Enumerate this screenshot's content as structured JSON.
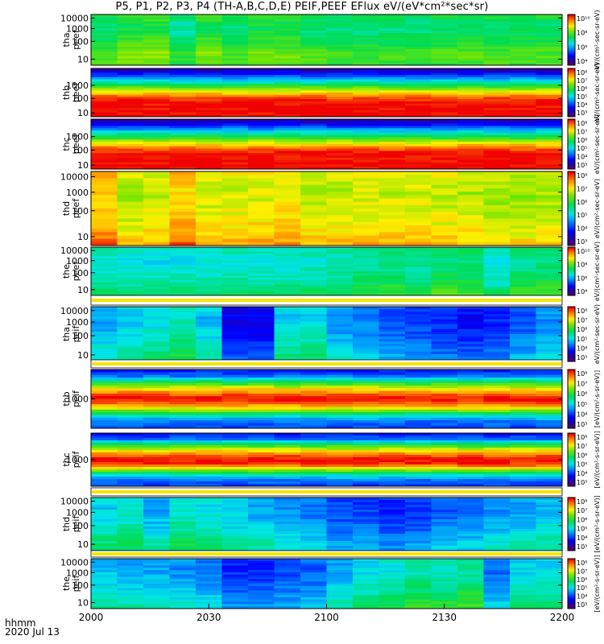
{
  "title": "P5, P1, P2, P3, P4 (TH-A,B,C,D,E) PEIF,PEEF EFlux eV/(eV*cm²*sec*sr)",
  "footer": {
    "time_label": "hhmm",
    "date_label": "2020 Jul 13"
  },
  "x_ticks": [
    "2000",
    "2030",
    "2100",
    "2130",
    "2200"
  ],
  "panels": [
    {
      "name": "tha peef",
      "line1": "tha",
      "line2": "peef",
      "yticks": [
        "10000",
        "1000",
        "100",
        "10"
      ],
      "cb_ticks": [
        "10¹⁰",
        "10⁸",
        "10⁶",
        "10⁴"
      ],
      "cb_label": "eV/(cm²-sec-sr-eV)"
    },
    {
      "name": "thb peef",
      "line1": "thb",
      "line2": "peef",
      "yticks": [
        "1000",
        "100",
        "10"
      ],
      "cb_ticks": [
        "10⁸",
        "10⁷",
        "10⁶",
        "10⁵",
        "10⁴",
        "10³"
      ],
      "cb_label": "eV/(cm²-sec-sr-eV)"
    },
    {
      "name": "thc peef",
      "line1": "thc",
      "line2": "peef",
      "yticks": [
        "1000",
        "100",
        "10"
      ],
      "cb_ticks": [
        "10⁸",
        "10⁷",
        "10⁶",
        "10⁵",
        "10⁴",
        "10³"
      ],
      "cb_label": "eV/(cm²-sec-sr-eV)"
    },
    {
      "name": "thd peef",
      "line1": "thd",
      "line2": "peef",
      "yticks": [
        "10000",
        "1000",
        "100",
        "10"
      ],
      "cb_ticks": [
        "10⁸",
        "10⁷",
        "10⁶",
        "10⁵",
        "10⁴",
        "10³"
      ],
      "cb_label": "eV/(cm²-sec-sr-eV)"
    },
    {
      "name": "the peef",
      "line1": "the",
      "line2": "peef",
      "yticks": [
        "10000",
        "1000",
        "100",
        "10"
      ],
      "cb_ticks": [
        "10¹⁰",
        "10⁸",
        "10⁶",
        "10⁴"
      ],
      "cb_label": "eV/(cm²-sec-sr-eV)"
    },
    {
      "name": "tha peif",
      "line1": "tha",
      "line2": "peif",
      "yticks": [
        "10000",
        "1000",
        "100",
        "10"
      ],
      "cb_ticks": [
        "10⁸",
        "10⁷",
        "10⁶",
        "10⁵",
        "10⁴",
        "10³"
      ],
      "cb_label": "eV/(cm²-sec-sr-eV)"
    },
    {
      "name": "thb peif",
      "line1": "thb",
      "line2": "peif",
      "yticks": [
        "1000"
      ],
      "cb_ticks": [
        "10⁸",
        "10⁷",
        "10⁶",
        "10⁵",
        "10⁴",
        "10³"
      ],
      "cb_label": "[eV/(cm²-s-sr-eV)]"
    },
    {
      "name": "thc peif",
      "line1": "thc",
      "line2": "peif",
      "yticks": [
        "1000"
      ],
      "cb_ticks": [
        "10⁸",
        "10⁷",
        "10⁶",
        "10⁵",
        "10⁴",
        "10³"
      ],
      "cb_label": "[eV/(cm²-s-sr-eV)]"
    },
    {
      "name": "thd peif",
      "line1": "thd",
      "line2": "peif",
      "yticks": [
        "10000",
        "1000",
        "100",
        "10"
      ],
      "cb_ticks": [
        "10⁸",
        "10⁷",
        "10⁶",
        "10⁵",
        "10⁴",
        "10³"
      ],
      "cb_label": "[eV/(cm²-s-sr-eV)]"
    },
    {
      "name": "the peif",
      "line1": "the",
      "line2": "peif",
      "yticks": [
        "10000",
        "1000",
        "100",
        "10"
      ],
      "cb_ticks": [
        "10⁸",
        "10⁷",
        "10⁶",
        "10⁵",
        "10⁴",
        "10³"
      ],
      "cb_label": "[eV/(cm²-s-sr-eV)]"
    }
  ],
  "chart_data": {
    "type": "heatmap",
    "title": "P5, P1, P2, P3, P4 (TH-A,B,C,D,E) PEIF,PEEF EFlux eV/(eV*cm²*sec*sr)",
    "xlabel": "hhmm",
    "x_range": [
      "2000",
      "2200"
    ],
    "date": "2020 Jul 13",
    "y_scale": "log",
    "colormap": "rainbow (purple-blue-cyan-green-yellow-red)",
    "colorbar_scale": "log",
    "panels": [
      "tha peef",
      "thb peef",
      "thc peef",
      "thd peef",
      "the peef",
      "tha peif",
      "thb peif",
      "thc peif",
      "thd peif",
      "the peif"
    ],
    "profiles_rows_top_to_bottom": [
      [
        0.6,
        0.55,
        0.5,
        0.5,
        0.55,
        0.6,
        0.65,
        0.7,
        0.75,
        0.75,
        0.7
      ],
      [
        0.1,
        0.2,
        0.35,
        0.5,
        0.65,
        0.8,
        0.92,
        1.0,
        1.0,
        1.0,
        1.0
      ],
      [
        0.1,
        0.2,
        0.35,
        0.5,
        0.65,
        0.8,
        0.92,
        1.0,
        1.0,
        1.0,
        1.0
      ],
      [
        0.8,
        0.75,
        0.72,
        0.72,
        0.74,
        0.76,
        0.78,
        0.8,
        0.84,
        0.9,
        0.95
      ],
      [
        0.55,
        0.5,
        0.45,
        0.45,
        0.48,
        0.5,
        0.52,
        0.55,
        0.6,
        0.65,
        0.7
      ],
      [
        0.35,
        0.3,
        0.3,
        0.32,
        0.35,
        0.38,
        0.42,
        0.45,
        0.5,
        0.55,
        0.6
      ],
      [
        0.2,
        0.3,
        0.55,
        0.75,
        0.9,
        1.0,
        0.9,
        0.7,
        0.45,
        0.3,
        0.25
      ],
      [
        0.2,
        0.3,
        0.55,
        0.75,
        0.9,
        1.0,
        0.95,
        0.7,
        0.45,
        0.3,
        0.25
      ],
      [
        0.35,
        0.32,
        0.32,
        0.35,
        0.38,
        0.42,
        0.45,
        0.5,
        0.55,
        0.6,
        0.62
      ],
      [
        0.35,
        0.32,
        0.32,
        0.35,
        0.38,
        0.42,
        0.45,
        0.5,
        0.55,
        0.6,
        0.62
      ]
    ],
    "time_modulation_18_bins": [
      [
        0.62,
        0.7,
        0.72,
        0.55,
        0.7,
        0.6,
        0.7,
        0.68,
        0.62,
        0.6,
        0.58,
        0.6,
        0.6,
        0.62,
        0.62,
        0.62,
        0.63,
        0.63
      ],
      [
        0,
        0,
        0,
        0,
        0,
        0,
        0,
        0,
        0,
        0,
        0,
        0,
        0,
        0,
        0,
        0,
        0,
        0
      ],
      [
        0,
        0,
        0,
        0,
        0,
        0,
        0,
        0,
        0,
        0,
        0,
        0,
        0,
        0,
        0,
        0,
        0,
        0
      ],
      [
        0.92,
        0.78,
        0.8,
        0.92,
        0.82,
        0.82,
        0.84,
        0.86,
        0.78,
        0.8,
        0.82,
        0.82,
        0.82,
        0.8,
        0.78,
        0.76,
        0.74,
        0.78
      ],
      [
        0.5,
        0.48,
        0.48,
        0.48,
        0.5,
        0.52,
        0.5,
        0.5,
        0.52,
        0.55,
        0.6,
        0.62,
        0.58,
        0.66,
        0.66,
        0.48,
        0.62,
        0.64
      ],
      [
        0.45,
        0.55,
        0.6,
        0.68,
        0.52,
        0.1,
        0.1,
        0.55,
        0.6,
        0.42,
        0.38,
        0.3,
        0.25,
        0.2,
        0.15,
        0.2,
        0.3,
        0.42
      ],
      [
        0,
        0,
        0,
        0,
        0,
        0,
        0,
        0,
        0,
        0,
        0,
        0,
        0,
        0,
        0,
        0,
        0,
        0
      ],
      [
        0,
        0,
        0,
        0,
        0,
        0,
        0,
        0,
        0,
        0,
        0,
        0,
        0,
        0,
        0,
        0,
        0,
        0
      ],
      [
        0.55,
        0.6,
        0.45,
        0.62,
        0.58,
        0.5,
        0.45,
        0.4,
        0.35,
        0.25,
        0.25,
        0.2,
        0.22,
        0.3,
        0.32,
        0.4,
        0.45,
        0.5
      ],
      [
        0.5,
        0.45,
        0.45,
        0.4,
        0.35,
        0.2,
        0.2,
        0.25,
        0.3,
        0.45,
        0.55,
        0.6,
        0.68,
        0.65,
        0.7,
        0.32,
        0.55,
        0.55
      ]
    ]
  }
}
